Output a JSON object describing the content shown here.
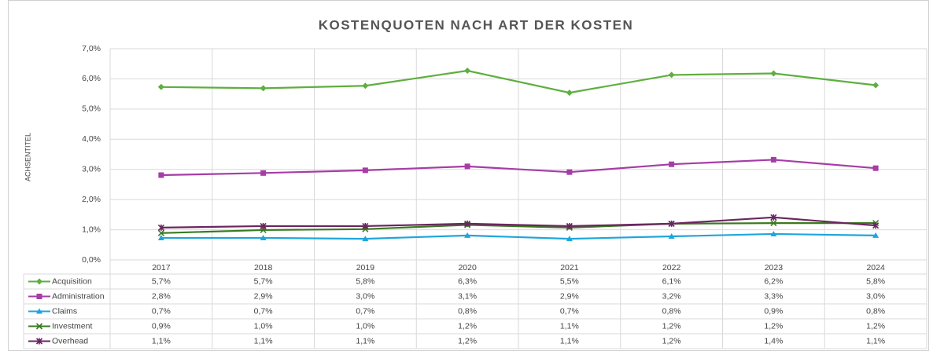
{
  "chart_data": {
    "type": "line",
    "title": "KOSTENQUOTEN NACH ART DER KOSTEN",
    "ylabel": "ACHSENTITEL",
    "categories": [
      "2017",
      "2018",
      "2019",
      "2020",
      "2021",
      "2022",
      "2023",
      "2024"
    ],
    "ylim": [
      0,
      7
    ],
    "yticks": [
      {
        "value": 0,
        "label": "0,0%"
      },
      {
        "value": 1,
        "label": "1,0%"
      },
      {
        "value": 2,
        "label": "2,0%"
      },
      {
        "value": 3,
        "label": "3,0%"
      },
      {
        "value": 4,
        "label": "4,0%"
      },
      {
        "value": 5,
        "label": "5,0%"
      },
      {
        "value": 6,
        "label": "6,0%"
      },
      {
        "value": 7,
        "label": "7,0%"
      }
    ],
    "grid": true,
    "series": [
      {
        "name": "Acquisition",
        "color": "#5eaf3e",
        "marker": "diamond",
        "values": [
          5.73,
          5.69,
          5.77,
          6.27,
          5.54,
          6.13,
          6.18,
          5.79
        ],
        "value_labels": [
          "5,7%",
          "5,7%",
          "5,8%",
          "6,3%",
          "5,5%",
          "6,1%",
          "6,2%",
          "5,8%"
        ]
      },
      {
        "name": "Administration",
        "color": "#a63ca6",
        "marker": "square",
        "values": [
          2.81,
          2.88,
          2.97,
          3.1,
          2.91,
          3.17,
          3.32,
          3.04
        ],
        "value_labels": [
          "2,8%",
          "2,9%",
          "3,0%",
          "3,1%",
          "2,9%",
          "3,2%",
          "3,3%",
          "3,0%"
        ]
      },
      {
        "name": "Claims",
        "color": "#1ea6dc",
        "marker": "triangle",
        "values": [
          0.73,
          0.73,
          0.7,
          0.81,
          0.7,
          0.78,
          0.86,
          0.81
        ],
        "value_labels": [
          "0,7%",
          "0,7%",
          "0,7%",
          "0,8%",
          "0,7%",
          "0,8%",
          "0,9%",
          "0,8%"
        ]
      },
      {
        "name": "Investment",
        "color": "#3b7a1f",
        "marker": "x",
        "values": [
          0.89,
          0.99,
          1.02,
          1.16,
          1.07,
          1.2,
          1.22,
          1.22
        ],
        "value_labels": [
          "0,9%",
          "1,0%",
          "1,0%",
          "1,2%",
          "1,1%",
          "1,2%",
          "1,2%",
          "1,2%"
        ]
      },
      {
        "name": "Overhead",
        "color": "#6b2561",
        "marker": "star",
        "values": [
          1.07,
          1.12,
          1.12,
          1.2,
          1.12,
          1.2,
          1.41,
          1.14
        ],
        "value_labels": [
          "1,1%",
          "1,1%",
          "1,1%",
          "1,2%",
          "1,1%",
          "1,2%",
          "1,4%",
          "1,1%"
        ]
      }
    ]
  }
}
